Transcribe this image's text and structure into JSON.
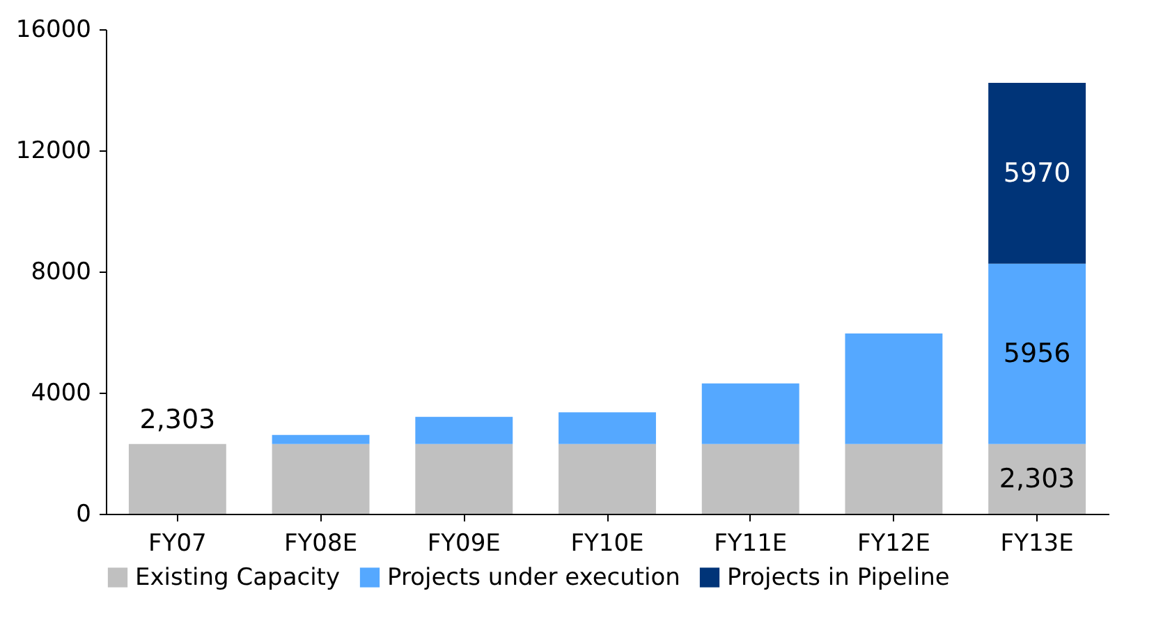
{
  "chart_data": {
    "type": "bar",
    "stacked": true,
    "categories": [
      "FY07",
      "FY08E",
      "FY09E",
      "FY10E",
      "FY11E",
      "FY12E",
      "FY13E"
    ],
    "series": [
      {
        "name": "Existing Capacity",
        "color": "#c0c0c0",
        "values": [
          2303,
          2303,
          2303,
          2303,
          2303,
          2303,
          2303
        ],
        "value_labels": [
          "2,303",
          null,
          null,
          null,
          null,
          null,
          "2,303"
        ]
      },
      {
        "name": "Projects under execution",
        "color": "#55a8ff",
        "values": [
          0,
          300,
          900,
          1050,
          2000,
          3650,
          5956
        ],
        "value_labels": [
          null,
          null,
          null,
          null,
          null,
          null,
          "5956"
        ]
      },
      {
        "name": "Projects in Pipeline",
        "color": "#003478",
        "values": [
          0,
          0,
          0,
          0,
          0,
          0,
          5970
        ],
        "value_labels": [
          null,
          null,
          null,
          null,
          null,
          null,
          "5970"
        ]
      }
    ],
    "ylim": [
      0,
      16000
    ],
    "yticks": [
      0,
      4000,
      8000,
      12000,
      16000
    ],
    "grid": false,
    "legend": "bottom"
  }
}
